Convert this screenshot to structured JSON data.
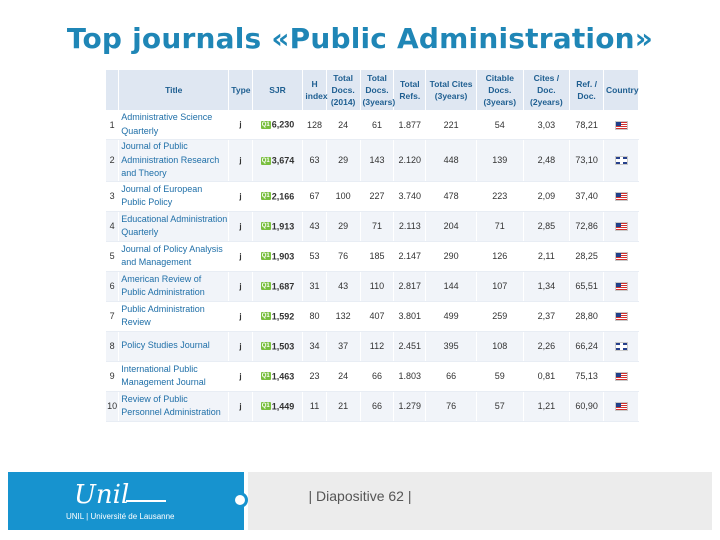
{
  "slide": {
    "title": "Top journals «Public Administration»",
    "footer": "| Diapositive 62 |",
    "logo_script": "Unil",
    "logo_sub": "UNIL | Université de Lausanne"
  },
  "table": {
    "headers": [
      "",
      "Title",
      "Type",
      "SJR",
      "H index",
      "Total Docs. (2014)",
      "Total Docs. (3years)",
      "Total Refs.",
      "Total Cites (3years)",
      "Citable Docs. (3years)",
      "Cites / Doc. (2years)",
      "Ref. / Doc.",
      "Country"
    ],
    "rows": [
      {
        "rank": "1",
        "title": "Administrative Science Quarterly",
        "type": "j",
        "quartile": "Q1",
        "sjr": "6,230",
        "h": "128",
        "docs2014": "24",
        "docs3": "61",
        "refs": "1.877",
        "cites3": "221",
        "citable3": "54",
        "cites_doc": "3,03",
        "ref_doc": "78,21",
        "country": "us"
      },
      {
        "rank": "2",
        "title": "Journal of Public Administration Research and Theory",
        "type": "j",
        "quartile": "Q1",
        "sjr": "3,674",
        "h": "63",
        "docs2014": "29",
        "docs3": "143",
        "refs": "2.120",
        "cites3": "448",
        "citable3": "139",
        "cites_doc": "2,48",
        "ref_doc": "73,10",
        "country": "gb"
      },
      {
        "rank": "3",
        "title": "Journal of European Public Policy",
        "type": "j",
        "quartile": "Q1",
        "sjr": "2,166",
        "h": "67",
        "docs2014": "100",
        "docs3": "227",
        "refs": "3.740",
        "cites3": "478",
        "citable3": "223",
        "cites_doc": "2,09",
        "ref_doc": "37,40",
        "country": "us"
      },
      {
        "rank": "4",
        "title": "Educational Administration Quarterly",
        "type": "j",
        "quartile": "Q1",
        "sjr": "1,913",
        "h": "43",
        "docs2014": "29",
        "docs3": "71",
        "refs": "2.113",
        "cites3": "204",
        "citable3": "71",
        "cites_doc": "2,85",
        "ref_doc": "72,86",
        "country": "us"
      },
      {
        "rank": "5",
        "title": "Journal of Policy Analysis and Management",
        "type": "j",
        "quartile": "Q1",
        "sjr": "1,903",
        "h": "53",
        "docs2014": "76",
        "docs3": "185",
        "refs": "2.147",
        "cites3": "290",
        "citable3": "126",
        "cites_doc": "2,11",
        "ref_doc": "28,25",
        "country": "us"
      },
      {
        "rank": "6",
        "title": "American Review of Public Administration",
        "type": "j",
        "quartile": "Q1",
        "sjr": "1,687",
        "h": "31",
        "docs2014": "43",
        "docs3": "110",
        "refs": "2.817",
        "cites3": "144",
        "citable3": "107",
        "cites_doc": "1,34",
        "ref_doc": "65,51",
        "country": "us"
      },
      {
        "rank": "7",
        "title": "Public Administration Review",
        "type": "j",
        "quartile": "Q1",
        "sjr": "1,592",
        "h": "80",
        "docs2014": "132",
        "docs3": "407",
        "refs": "3.801",
        "cites3": "499",
        "citable3": "259",
        "cites_doc": "2,37",
        "ref_doc": "28,80",
        "country": "us"
      },
      {
        "rank": "8",
        "title": "Policy Studies Journal",
        "type": "j",
        "quartile": "Q1",
        "sjr": "1,503",
        "h": "34",
        "docs2014": "37",
        "docs3": "112",
        "refs": "2.451",
        "cites3": "395",
        "citable3": "108",
        "cites_doc": "2,26",
        "ref_doc": "66,24",
        "country": "gb"
      },
      {
        "rank": "9",
        "title": "International Public Management Journal",
        "type": "j",
        "quartile": "Q1",
        "sjr": "1,463",
        "h": "23",
        "docs2014": "24",
        "docs3": "66",
        "refs": "1.803",
        "cites3": "66",
        "citable3": "59",
        "cites_doc": "0,81",
        "ref_doc": "75,13",
        "country": "us"
      },
      {
        "rank": "10",
        "title": "Review of Public Personnel Administration",
        "type": "j",
        "quartile": "Q1",
        "sjr": "1,449",
        "h": "11",
        "docs2014": "21",
        "docs3": "66",
        "refs": "1.279",
        "cites3": "76",
        "citable3": "57",
        "cites_doc": "1,21",
        "ref_doc": "60,90",
        "country": "us"
      }
    ]
  }
}
